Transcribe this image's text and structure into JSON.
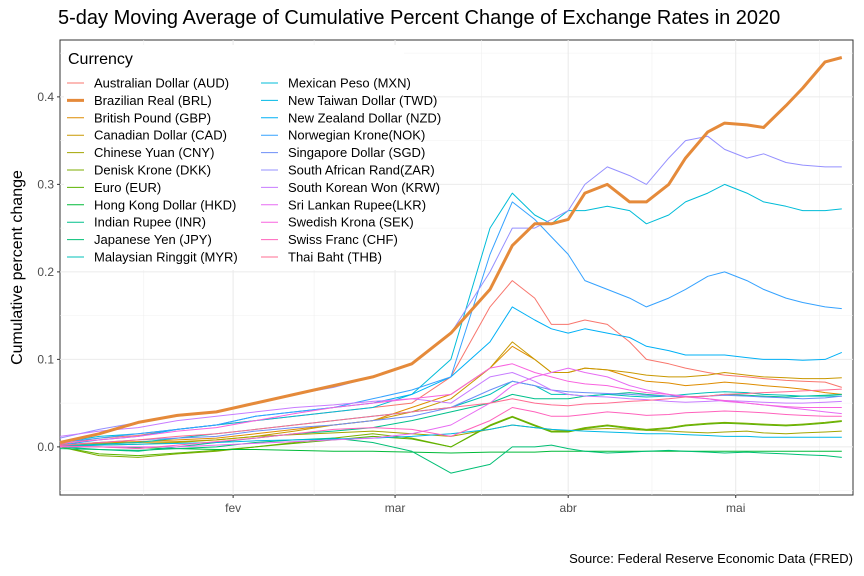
{
  "chart_data": {
    "type": "line",
    "title": "5-day Moving Average of Cumulative Percent Change of Exchange Rates in 2020",
    "xlabel": "",
    "ylabel": "Cumulative percent change",
    "caption": "Source: Federal Reserve Economic Data (FRED)",
    "x_ticks": [
      "fev",
      "mar",
      "abr",
      "mai"
    ],
    "x_tick_values": [
      32,
      61,
      92,
      122
    ],
    "xlim": [
      1,
      143
    ],
    "y_ticks": [
      "0.0",
      "0.1",
      "0.2",
      "0.3",
      "0.4"
    ],
    "y_tick_values": [
      0.0,
      0.1,
      0.2,
      0.3,
      0.4
    ],
    "ylim": [
      -0.055,
      0.465
    ],
    "grid": true,
    "legend": {
      "title": "Currency",
      "placement": "top-left inside plot",
      "columns": 2
    },
    "x": [
      1,
      8,
      15,
      22,
      29,
      36,
      43,
      50,
      57,
      64,
      71,
      78,
      82,
      86,
      89,
      92,
      95,
      99,
      103,
      106,
      110,
      113,
      117,
      120,
      124,
      127,
      131,
      134,
      138,
      141
    ],
    "series": [
      {
        "name": "Australian Dollar (AUD)",
        "color": "#f8766d",
        "values": [
          0.003,
          0.01,
          0.013,
          0.02,
          0.025,
          0.03,
          0.035,
          0.04,
          0.045,
          0.05,
          0.08,
          0.16,
          0.19,
          0.17,
          0.14,
          0.14,
          0.145,
          0.14,
          0.12,
          0.1,
          0.095,
          0.09,
          0.085,
          0.082,
          0.08,
          0.078,
          0.076,
          0.075,
          0.074,
          0.068
        ]
      },
      {
        "name": "Brazilian Real (BRL)",
        "color": "#e58a3a",
        "values": [
          0.005,
          0.015,
          0.028,
          0.036,
          0.04,
          0.05,
          0.06,
          0.07,
          0.08,
          0.095,
          0.13,
          0.18,
          0.23,
          0.255,
          0.255,
          0.26,
          0.29,
          0.3,
          0.28,
          0.28,
          0.3,
          0.33,
          0.36,
          0.37,
          0.368,
          0.365,
          0.39,
          0.41,
          0.44,
          0.445
        ]
      },
      {
        "name": "British Pound (GBP)",
        "color": "#de8c00",
        "values": [
          0.002,
          0.005,
          0.006,
          0.008,
          0.01,
          0.015,
          0.02,
          0.025,
          0.03,
          0.045,
          0.06,
          0.09,
          0.115,
          0.1,
          0.085,
          0.085,
          0.09,
          0.088,
          0.08,
          0.075,
          0.073,
          0.07,
          0.072,
          0.074,
          0.072,
          0.07,
          0.068,
          0.066,
          0.062,
          0.06
        ]
      },
      {
        "name": "Canadian Dollar (CAD)",
        "color": "#c99800",
        "values": [
          0.002,
          0.004,
          0.005,
          0.006,
          0.008,
          0.012,
          0.018,
          0.025,
          0.03,
          0.04,
          0.055,
          0.09,
          0.12,
          0.1,
          0.085,
          0.085,
          0.09,
          0.088,
          0.085,
          0.082,
          0.08,
          0.08,
          0.082,
          0.085,
          0.082,
          0.08,
          0.079,
          0.078,
          0.078,
          0.079
        ]
      },
      {
        "name": "Chinese Yuan (CNY)",
        "color": "#a3a500",
        "values": [
          0.001,
          0.002,
          0.003,
          0.005,
          0.008,
          0.012,
          0.014,
          0.016,
          0.018,
          0.015,
          0.012,
          0.02,
          0.025,
          0.022,
          0.02,
          0.018,
          0.02,
          0.021,
          0.02,
          0.019,
          0.018,
          0.017,
          0.016,
          0.017,
          0.018,
          0.016,
          0.015,
          0.016,
          0.017,
          0.018
        ]
      },
      {
        "name": "Denisk Krone (DKK)",
        "color": "#7cae00",
        "values": [
          0.0,
          -0.01,
          -0.012,
          -0.008,
          -0.005,
          0.0,
          0.005,
          0.01,
          0.015,
          0.01,
          0.0,
          0.025,
          0.035,
          0.025,
          0.018,
          0.018,
          0.022,
          0.025,
          0.022,
          0.02,
          0.022,
          0.025,
          0.027,
          0.028,
          0.027,
          0.026,
          0.025,
          0.026,
          0.028,
          0.03
        ]
      },
      {
        "name": "Euro (EUR)",
        "color": "#5bb300",
        "values": [
          0.0,
          -0.008,
          -0.01,
          -0.007,
          -0.004,
          0.0,
          0.004,
          0.008,
          0.012,
          0.009,
          0.0,
          0.024,
          0.034,
          0.024,
          0.017,
          0.017,
          0.021,
          0.024,
          0.021,
          0.019,
          0.021,
          0.024,
          0.026,
          0.027,
          0.026,
          0.025,
          0.024,
          0.025,
          0.027,
          0.029
        ]
      },
      {
        "name": "Hong Kong Dollar (HKD)",
        "color": "#00ba38",
        "values": [
          0.0,
          0.0,
          -0.001,
          -0.002,
          -0.003,
          -0.003,
          -0.004,
          -0.005,
          -0.005,
          -0.006,
          -0.007,
          -0.006,
          -0.006,
          -0.006,
          -0.005,
          -0.005,
          -0.005,
          -0.005,
          -0.005,
          -0.005,
          -0.005,
          -0.005,
          -0.005,
          -0.005,
          -0.005,
          -0.005,
          -0.005,
          -0.005,
          -0.005,
          -0.005
        ]
      },
      {
        "name": "Indian Rupee (INR)",
        "color": "#00c08b",
        "values": [
          0.0,
          -0.003,
          -0.005,
          0.0,
          0.005,
          0.01,
          0.015,
          0.018,
          0.022,
          0.03,
          0.04,
          0.05,
          0.06,
          0.055,
          0.055,
          0.055,
          0.058,
          0.06,
          0.062,
          0.06,
          0.058,
          0.057,
          0.058,
          0.06,
          0.059,
          0.058,
          0.057,
          0.058,
          0.059,
          0.06
        ]
      },
      {
        "name": "Japanese Yen (JPY)",
        "color": "#00bf74",
        "values": [
          -0.002,
          -0.003,
          -0.004,
          -0.002,
          0.0,
          0.005,
          0.008,
          0.01,
          0.005,
          -0.005,
          -0.03,
          -0.02,
          0.0,
          0.0,
          0.002,
          -0.002,
          -0.005,
          -0.007,
          -0.006,
          -0.005,
          -0.004,
          -0.005,
          -0.006,
          -0.007,
          -0.006,
          -0.007,
          -0.008,
          -0.009,
          -0.01,
          -0.012
        ]
      },
      {
        "name": "Malaysian Ringgit (MYR)",
        "color": "#00c0b8",
        "values": [
          0.001,
          0.003,
          0.005,
          0.01,
          0.015,
          0.02,
          0.025,
          0.03,
          0.035,
          0.04,
          0.045,
          0.06,
          0.075,
          0.07,
          0.06,
          0.06,
          0.058,
          0.06,
          0.058,
          0.057,
          0.058,
          0.06,
          0.062,
          0.063,
          0.062,
          0.06,
          0.059,
          0.058,
          0.058,
          0.058
        ]
      },
      {
        "name": "Mexican Peso (MXN)",
        "color": "#00bcd8",
        "values": [
          0.005,
          0.012,
          0.015,
          0.02,
          0.025,
          0.03,
          0.035,
          0.04,
          0.045,
          0.06,
          0.1,
          0.25,
          0.29,
          0.265,
          0.255,
          0.27,
          0.27,
          0.275,
          0.27,
          0.255,
          0.265,
          0.28,
          0.29,
          0.3,
          0.29,
          0.28,
          0.275,
          0.27,
          0.27,
          0.272
        ]
      },
      {
        "name": "New Taiwan Dollar (TWD)",
        "color": "#00b8e5",
        "values": [
          0.0,
          0.002,
          0.003,
          0.004,
          0.005,
          0.007,
          0.008,
          0.009,
          0.01,
          0.012,
          0.015,
          0.02,
          0.025,
          0.022,
          0.02,
          0.019,
          0.018,
          0.017,
          0.016,
          0.015,
          0.015,
          0.014,
          0.013,
          0.012,
          0.012,
          0.011,
          0.011,
          0.011,
          0.011,
          0.011
        ]
      },
      {
        "name": "New Zealand Dollar (NZD)",
        "color": "#00b0f6",
        "values": [
          0.002,
          0.008,
          0.012,
          0.02,
          0.025,
          0.035,
          0.04,
          0.045,
          0.05,
          0.06,
          0.08,
          0.12,
          0.16,
          0.145,
          0.135,
          0.13,
          0.135,
          0.13,
          0.125,
          0.115,
          0.11,
          0.105,
          0.105,
          0.105,
          0.102,
          0.1,
          0.1,
          0.099,
          0.1,
          0.108
        ]
      },
      {
        "name": "Norwegian Krone(NOK)",
        "color": "#35a2ff",
        "values": [
          0.005,
          0.01,
          0.015,
          0.02,
          0.025,
          0.035,
          0.04,
          0.045,
          0.055,
          0.065,
          0.08,
          0.22,
          0.28,
          0.26,
          0.24,
          0.22,
          0.19,
          0.18,
          0.17,
          0.16,
          0.17,
          0.18,
          0.195,
          0.2,
          0.19,
          0.18,
          0.17,
          0.165,
          0.16,
          0.158
        ]
      },
      {
        "name": "Singapore Dollar (SGD)",
        "color": "#6d8ef7",
        "values": [
          0.002,
          0.005,
          0.008,
          0.01,
          0.012,
          0.018,
          0.022,
          0.025,
          0.03,
          0.035,
          0.045,
          0.065,
          0.075,
          0.07,
          0.065,
          0.063,
          0.062,
          0.061,
          0.06,
          0.059,
          0.058,
          0.057,
          0.058,
          0.059,
          0.058,
          0.057,
          0.056,
          0.055,
          0.056,
          0.058
        ]
      },
      {
        "name": "South African Rand(ZAR)",
        "color": "#9590ff",
        "values": [
          0.01,
          0.02,
          0.028,
          0.035,
          0.04,
          0.05,
          0.06,
          0.068,
          0.08,
          0.095,
          0.13,
          0.2,
          0.25,
          0.25,
          0.26,
          0.27,
          0.3,
          0.32,
          0.31,
          0.3,
          0.33,
          0.35,
          0.355,
          0.34,
          0.33,
          0.335,
          0.325,
          0.322,
          0.32,
          0.32
        ]
      },
      {
        "name": "South Korean Won (KRW)",
        "color": "#c77cff",
        "values": [
          0.012,
          0.018,
          0.022,
          0.03,
          0.035,
          0.04,
          0.045,
          0.048,
          0.052,
          0.055,
          0.05,
          0.08,
          0.085,
          0.075,
          0.065,
          0.06,
          0.058,
          0.057,
          0.055,
          0.054,
          0.052,
          0.051,
          0.052,
          0.053,
          0.052,
          0.051,
          0.05,
          0.05,
          0.051,
          0.052
        ]
      },
      {
        "name": "Sri Lankan Rupee(LKR)",
        "color": "#e76bf3",
        "values": [
          0.0,
          0.0,
          0.0,
          0.0,
          0.002,
          0.004,
          0.006,
          0.008,
          0.01,
          0.015,
          0.025,
          0.05,
          0.07,
          0.08,
          0.085,
          0.09,
          0.085,
          0.08,
          0.07,
          0.065,
          0.06,
          0.058,
          0.055,
          0.052,
          0.05,
          0.048,
          0.045,
          0.043,
          0.04,
          0.038
        ]
      },
      {
        "name": "Swedish Krona (SEK)",
        "color": "#f863df",
        "values": [
          0.004,
          0.008,
          0.012,
          0.018,
          0.022,
          0.03,
          0.038,
          0.045,
          0.05,
          0.055,
          0.06,
          0.09,
          0.095,
          0.085,
          0.08,
          0.075,
          0.072,
          0.07,
          0.065,
          0.062,
          0.06,
          0.057,
          0.055,
          0.053,
          0.05,
          0.048,
          0.046,
          0.045,
          0.045,
          0.045
        ]
      },
      {
        "name": "Swiss Franc (CHF)",
        "color": "#ff62bc",
        "values": [
          0.001,
          0.0,
          -0.002,
          0.002,
          0.006,
          0.01,
          0.015,
          0.02,
          0.022,
          0.02,
          0.012,
          0.03,
          0.045,
          0.04,
          0.035,
          0.035,
          0.037,
          0.04,
          0.038,
          0.036,
          0.037,
          0.039,
          0.04,
          0.041,
          0.04,
          0.039,
          0.037,
          0.036,
          0.035,
          0.035
        ]
      },
      {
        "name": "Thai Baht (THB)",
        "color": "#ff6c91",
        "values": [
          0.002,
          0.005,
          0.008,
          0.012,
          0.015,
          0.02,
          0.025,
          0.03,
          0.035,
          0.04,
          0.045,
          0.05,
          0.055,
          0.05,
          0.048,
          0.047,
          0.049,
          0.05,
          0.052,
          0.053,
          0.055,
          0.057,
          0.058,
          0.06,
          0.061,
          0.062,
          0.063,
          0.064,
          0.065,
          0.066
        ]
      }
    ]
  }
}
